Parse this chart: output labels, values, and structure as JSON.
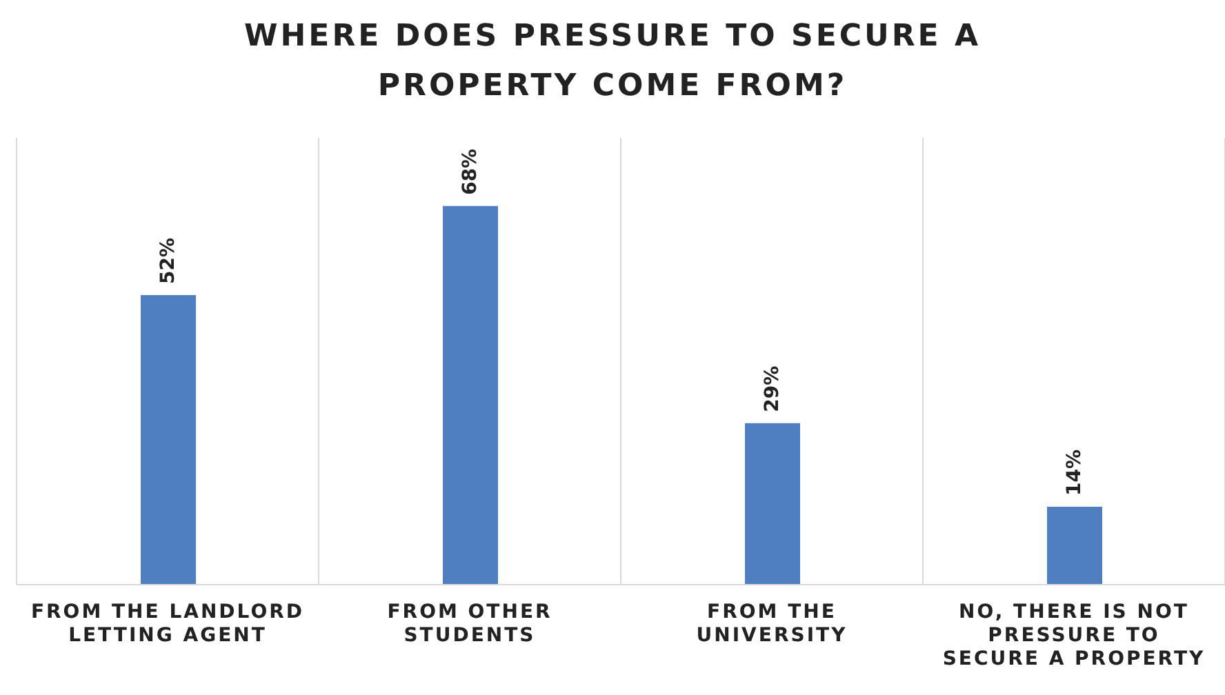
{
  "chart_data": {
    "type": "bar",
    "title": "WHERE DOES PRESSURE TO SECURE A PROPERTY COME FROM?",
    "categories": [
      "FROM THE LANDLORD LETTING AGENT",
      "FROM OTHER STUDENTS",
      "FROM THE UNIVERSITY",
      "NO, THERE IS NOT PRESSURE TO SECURE A PROPERTY"
    ],
    "values": [
      52,
      68,
      29,
      14
    ],
    "value_labels": [
      "52%",
      "68%",
      "29%",
      "14%"
    ],
    "color": "#4f7fc0",
    "grid": "x",
    "legend": false
  }
}
